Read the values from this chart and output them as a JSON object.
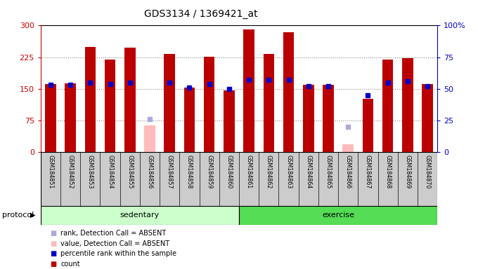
{
  "title": "GDS3134 / 1369421_at",
  "samples": [
    "GSM184851",
    "GSM184852",
    "GSM184853",
    "GSM184854",
    "GSM184855",
    "GSM184856",
    "GSM184857",
    "GSM184858",
    "GSM184859",
    "GSM184860",
    "GSM184861",
    "GSM184862",
    "GSM184863",
    "GSM184864",
    "GSM184865",
    "GSM184866",
    "GSM184867",
    "GSM184868",
    "GSM184869",
    "GSM184870"
  ],
  "count_values": [
    162,
    163,
    249,
    220,
    248,
    null,
    232,
    153,
    226,
    147,
    290,
    233,
    285,
    160,
    160,
    null,
    127,
    220,
    222,
    162
  ],
  "absent_values": [
    null,
    null,
    null,
    null,
    null,
    63,
    null,
    null,
    null,
    null,
    null,
    null,
    null,
    null,
    null,
    18,
    null,
    null,
    null,
    null
  ],
  "rank_values": [
    53,
    53,
    55,
    54,
    55,
    null,
    55,
    51,
    54,
    50,
    57,
    57,
    57,
    52,
    52,
    null,
    45,
    55,
    56,
    52
  ],
  "absent_rank_values": [
    null,
    null,
    null,
    null,
    null,
    26,
    null,
    null,
    null,
    null,
    null,
    null,
    null,
    null,
    null,
    20,
    null,
    null,
    null,
    null
  ],
  "sedentary_count": 10,
  "exercise_count": 10,
  "sedentary_label": "sedentary",
  "exercise_label": "exercise",
  "protocol_label": "protocol",
  "bar_color": "#bb0000",
  "absent_bar_color": "#ffbbbb",
  "rank_color": "#0000cc",
  "absent_rank_color": "#aaaadd",
  "left_axis_color": "#cc0000",
  "right_axis_color": "#0000cc",
  "ylim_left": [
    0,
    300
  ],
  "ylim_right": [
    0,
    100
  ],
  "yticks_left": [
    0,
    75,
    150,
    225,
    300
  ],
  "yticks_right": [
    0,
    25,
    50,
    75,
    100
  ],
  "grid_color": "#888888",
  "bg_color": "#ffffff",
  "plot_bg_color": "#ffffff",
  "label_bg_color": "#cccccc",
  "sedentary_bg": "#ccffcc",
  "exercise_bg": "#55dd55",
  "legend_items": [
    {
      "label": "count",
      "color": "#bb0000"
    },
    {
      "label": "percentile rank within the sample",
      "color": "#0000cc"
    },
    {
      "label": "value, Detection Call = ABSENT",
      "color": "#ffbbbb"
    },
    {
      "label": "rank, Detection Call = ABSENT",
      "color": "#aaaadd"
    }
  ]
}
